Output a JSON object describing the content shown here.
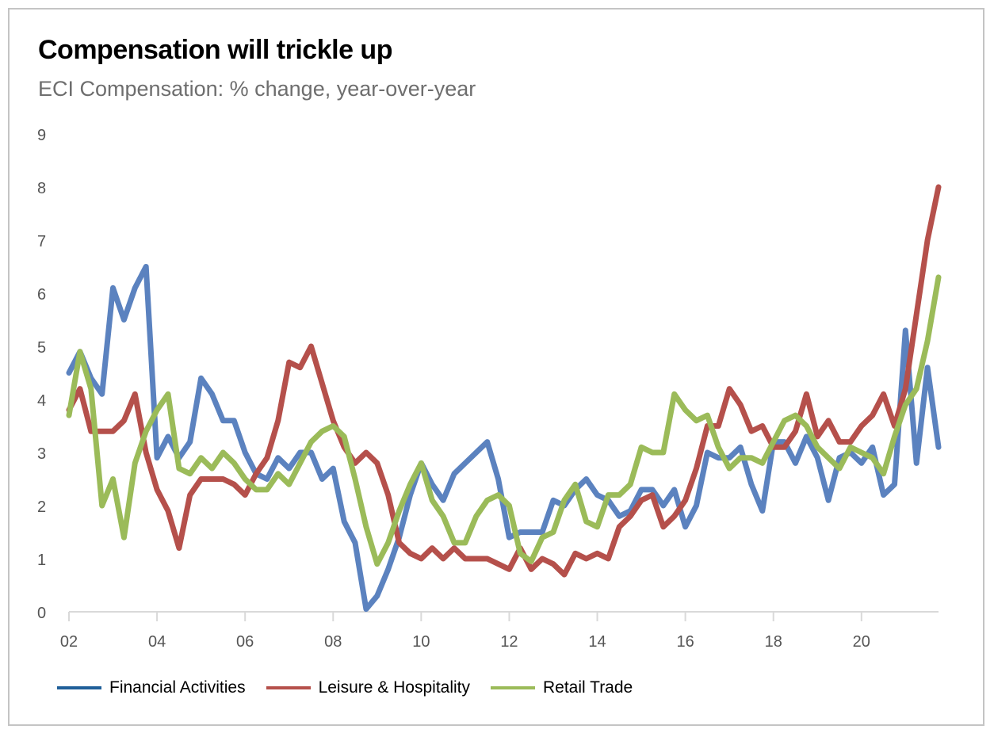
{
  "header": {
    "title": "Compensation will trickle up",
    "subtitle": "ECI Compensation: % change, year-over-year"
  },
  "legend": {
    "items": [
      {
        "label": "Financial Activities",
        "color": "#1f5f99"
      },
      {
        "label": "Leisure & Hospitality",
        "color": "#b5504b"
      },
      {
        "label": "Retail Trade",
        "color": "#9bbb59"
      }
    ]
  },
  "chart_data": {
    "type": "line",
    "title": "Compensation will trickle up",
    "subtitle": "ECI Compensation: % change, year-over-year",
    "xlabel": "",
    "ylabel": "",
    "x_ticks": [
      "02",
      "04",
      "06",
      "08",
      "10",
      "12",
      "14",
      "16",
      "18",
      "20"
    ],
    "x_tick_years": [
      2002,
      2004,
      2006,
      2008,
      2010,
      2012,
      2014,
      2016,
      2018,
      2020
    ],
    "y_ticks": [
      "0",
      "1",
      "2",
      "3",
      "4",
      "5",
      "6",
      "7",
      "8",
      "9"
    ],
    "ylim": [
      0,
      9
    ],
    "xlim": [
      2002.0,
      2021.75
    ],
    "grid": false,
    "legend_position": "bottom-left",
    "series": [
      {
        "name": "Financial Activities",
        "color": "#5b82bf",
        "legend_color": "#1f5f99",
        "x": [
          2002.0,
          2002.25,
          2002.5,
          2002.75,
          2003.0,
          2003.25,
          2003.5,
          2003.75,
          2004.0,
          2004.25,
          2004.5,
          2004.75,
          2005.0,
          2005.25,
          2005.5,
          2005.75,
          2006.0,
          2006.25,
          2006.5,
          2006.75,
          2007.0,
          2007.25,
          2007.5,
          2007.75,
          2008.0,
          2008.25,
          2008.5,
          2008.75,
          2009.0,
          2009.25,
          2009.5,
          2009.75,
          2010.0,
          2010.25,
          2010.5,
          2010.75,
          2011.0,
          2011.25,
          2011.5,
          2011.75,
          2012.0,
          2012.25,
          2012.5,
          2012.75,
          2013.0,
          2013.25,
          2013.5,
          2013.75,
          2014.0,
          2014.25,
          2014.5,
          2014.75,
          2015.0,
          2015.25,
          2015.5,
          2015.75,
          2016.0,
          2016.25,
          2016.5,
          2016.75,
          2017.0,
          2017.25,
          2017.5,
          2017.75,
          2018.0,
          2018.25,
          2018.5,
          2018.75,
          2019.0,
          2019.25,
          2019.5,
          2019.75,
          2020.0,
          2020.25,
          2020.5,
          2020.75,
          2021.0,
          2021.25,
          2021.5,
          2021.75
        ],
        "y": [
          4.5,
          4.9,
          4.4,
          4.1,
          6.1,
          5.5,
          6.1,
          6.5,
          2.9,
          3.3,
          2.9,
          3.2,
          4.4,
          4.1,
          3.6,
          3.6,
          3.0,
          2.6,
          2.5,
          2.9,
          2.7,
          3.0,
          3.0,
          2.5,
          2.7,
          1.7,
          1.3,
          0.05,
          0.3,
          0.8,
          1.4,
          2.2,
          2.8,
          2.4,
          2.1,
          2.6,
          2.8,
          3.0,
          3.2,
          2.5,
          1.4,
          1.5,
          1.5,
          1.5,
          2.1,
          2.0,
          2.3,
          2.5,
          2.2,
          2.1,
          1.8,
          1.9,
          2.3,
          2.3,
          2.0,
          2.3,
          1.6,
          2.0,
          3.0,
          2.9,
          2.9,
          3.1,
          2.4,
          1.9,
          3.2,
          3.2,
          2.8,
          3.3,
          2.9,
          2.1,
          2.9,
          3.0,
          2.8,
          3.1,
          2.2,
          2.4,
          5.3,
          2.8,
          4.6,
          3.1
        ]
      },
      {
        "name": "Leisure & Hospitality",
        "color": "#b5504b",
        "legend_color": "#b5504b",
        "x": [
          2002.0,
          2002.25,
          2002.5,
          2002.75,
          2003.0,
          2003.25,
          2003.5,
          2003.75,
          2004.0,
          2004.25,
          2004.5,
          2004.75,
          2005.0,
          2005.25,
          2005.5,
          2005.75,
          2006.0,
          2006.25,
          2006.5,
          2006.75,
          2007.0,
          2007.25,
          2007.5,
          2007.75,
          2008.0,
          2008.25,
          2008.5,
          2008.75,
          2009.0,
          2009.25,
          2009.5,
          2009.75,
          2010.0,
          2010.25,
          2010.5,
          2010.75,
          2011.0,
          2011.25,
          2011.5,
          2011.75,
          2012.0,
          2012.25,
          2012.5,
          2012.75,
          2013.0,
          2013.25,
          2013.5,
          2013.75,
          2014.0,
          2014.25,
          2014.5,
          2014.75,
          2015.0,
          2015.25,
          2015.5,
          2015.75,
          2016.0,
          2016.25,
          2016.5,
          2016.75,
          2017.0,
          2017.25,
          2017.5,
          2017.75,
          2018.0,
          2018.25,
          2018.5,
          2018.75,
          2019.0,
          2019.25,
          2019.5,
          2019.75,
          2020.0,
          2020.25,
          2020.5,
          2020.75,
          2021.0,
          2021.25,
          2021.5,
          2021.75
        ],
        "y": [
          3.8,
          4.2,
          3.4,
          3.4,
          3.4,
          3.6,
          4.1,
          3.0,
          2.3,
          1.9,
          1.2,
          2.2,
          2.5,
          2.5,
          2.5,
          2.4,
          2.2,
          2.6,
          2.9,
          3.6,
          4.7,
          4.6,
          5.0,
          4.3,
          3.6,
          3.1,
          2.8,
          3.0,
          2.8,
          2.2,
          1.3,
          1.1,
          1.0,
          1.2,
          1.0,
          1.2,
          1.0,
          1.0,
          1.0,
          0.9,
          0.8,
          1.2,
          0.8,
          1.0,
          0.9,
          0.7,
          1.1,
          1.0,
          1.1,
          1.0,
          1.6,
          1.8,
          2.1,
          2.2,
          1.6,
          1.8,
          2.1,
          2.7,
          3.5,
          3.5,
          4.2,
          3.9,
          3.4,
          3.5,
          3.1,
          3.1,
          3.4,
          4.1,
          3.3,
          3.6,
          3.2,
          3.2,
          3.5,
          3.7,
          4.1,
          3.5,
          4.2,
          5.6,
          7.0,
          8.0
        ]
      },
      {
        "name": "Retail Trade",
        "color": "#9bbb59",
        "legend_color": "#9bbb59",
        "x": [
          2002.0,
          2002.25,
          2002.5,
          2002.75,
          2003.0,
          2003.25,
          2003.5,
          2003.75,
          2004.0,
          2004.25,
          2004.5,
          2004.75,
          2005.0,
          2005.25,
          2005.5,
          2005.75,
          2006.0,
          2006.25,
          2006.5,
          2006.75,
          2007.0,
          2007.25,
          2007.5,
          2007.75,
          2008.0,
          2008.25,
          2008.5,
          2008.75,
          2009.0,
          2009.25,
          2009.5,
          2009.75,
          2010.0,
          2010.25,
          2010.5,
          2010.75,
          2011.0,
          2011.25,
          2011.5,
          2011.75,
          2012.0,
          2012.25,
          2012.5,
          2012.75,
          2013.0,
          2013.25,
          2013.5,
          2013.75,
          2014.0,
          2014.25,
          2014.5,
          2014.75,
          2015.0,
          2015.25,
          2015.5,
          2015.75,
          2016.0,
          2016.25,
          2016.5,
          2016.75,
          2017.0,
          2017.25,
          2017.5,
          2017.75,
          2018.0,
          2018.25,
          2018.5,
          2018.75,
          2019.0,
          2019.25,
          2019.5,
          2019.75,
          2020.0,
          2020.25,
          2020.5,
          2020.75,
          2021.0,
          2021.25,
          2021.5,
          2021.75
        ],
        "y": [
          3.7,
          4.9,
          4.2,
          2.0,
          2.5,
          1.4,
          2.8,
          3.4,
          3.8,
          4.1,
          2.7,
          2.6,
          2.9,
          2.7,
          3.0,
          2.8,
          2.5,
          2.3,
          2.3,
          2.6,
          2.4,
          2.8,
          3.2,
          3.4,
          3.5,
          3.3,
          2.5,
          1.6,
          0.9,
          1.3,
          1.9,
          2.4,
          2.8,
          2.1,
          1.8,
          1.3,
          1.3,
          1.8,
          2.1,
          2.2,
          2.0,
          1.1,
          0.95,
          1.4,
          1.5,
          2.1,
          2.4,
          1.7,
          1.6,
          2.2,
          2.2,
          2.4,
          3.1,
          3.0,
          3.0,
          4.1,
          3.8,
          3.6,
          3.7,
          3.1,
          2.7,
          2.9,
          2.9,
          2.8,
          3.2,
          3.6,
          3.7,
          3.5,
          3.1,
          2.9,
          2.7,
          3.1,
          3.0,
          2.9,
          2.6,
          3.3,
          3.9,
          4.2,
          5.1,
          6.3
        ]
      }
    ]
  }
}
